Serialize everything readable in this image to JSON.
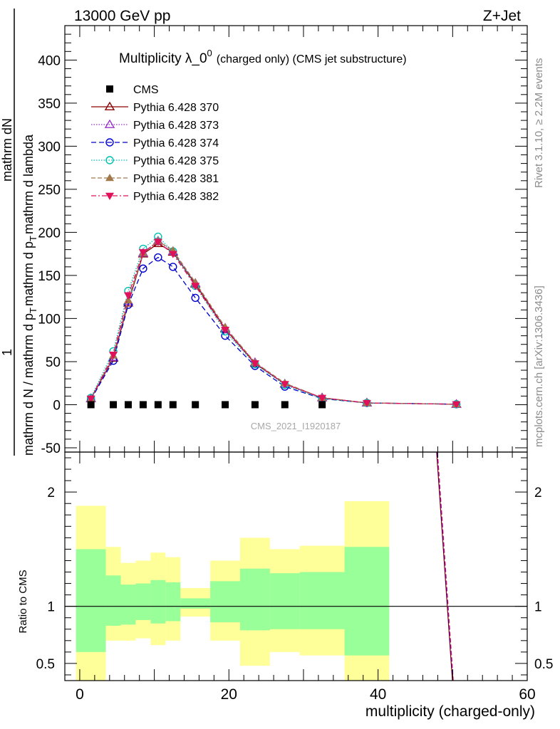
{
  "header": {
    "energy_label": "13000 GeV pp",
    "process_label": "Z+Jet"
  },
  "side_labels": {
    "rivet": "Rivet 3.1.10, ≥ 2.2M events",
    "mcplots": "mcplots.cern.ch [arXiv:1306.3436]"
  },
  "chart_data": [
    {
      "type": "line",
      "title_main": "Multiplicity λ_0",
      "title_sup": "0",
      "title_suffix": "(charged only) (CMS jet substructure)",
      "ylabel_frac_num": "mathrm dN",
      "ylabel_lines": [
        "mathrm d N / mathrm d p",
        "mathrm d p",
        "mathrm d lambda"
      ],
      "ylabel_one": "1",
      "ylabel_sub": "T",
      "watermark": "CMS_2021_I1920187",
      "xlim": [
        -2,
        60
      ],
      "ylim": [
        -55,
        440
      ],
      "y_ticks": [
        -50,
        0,
        50,
        100,
        150,
        200,
        250,
        300,
        350,
        400
      ],
      "x_ticks": [
        0,
        20,
        40,
        60
      ],
      "legend_position": "top-left",
      "cms": {
        "name": "CMS",
        "color": "#000000",
        "x": [
          1.5,
          4.5,
          6.5,
          8.5,
          10.5,
          12.5,
          15.5,
          19.5,
          23.5,
          27.5,
          32.5
        ],
        "y": [
          0,
          0,
          0,
          0,
          0,
          0,
          0,
          0,
          0,
          0,
          0
        ]
      },
      "x": [
        1.5,
        4.5,
        6.5,
        8.5,
        10.5,
        12.5,
        15.5,
        19.5,
        23.5,
        27.5,
        32.5,
        38.5,
        50.5
      ],
      "series": [
        {
          "name": "Pythia 6.428 370",
          "color": "#8b0000",
          "dash": "",
          "marker": "triangle-up-open",
          "values": [
            7,
            54,
            118,
            175,
            187,
            177,
            140,
            88,
            48,
            24,
            8,
            2,
            0.5
          ]
        },
        {
          "name": "Pythia 6.428 373",
          "color": "#9932cc",
          "dash": "1.5 2",
          "marker": "triangle-up-open",
          "values": [
            7,
            55,
            120,
            176,
            190,
            178,
            141,
            89,
            49,
            24,
            8,
            2,
            0.5
          ]
        },
        {
          "name": "Pythia 6.428 374",
          "color": "#0000cd",
          "dash": "7 4",
          "marker": "circle-open",
          "values": [
            6,
            51,
            116,
            158,
            171,
            160,
            124,
            80,
            45,
            21,
            7,
            2,
            0.5
          ]
        },
        {
          "name": "Pythia 6.428 375",
          "color": "#00c0b0",
          "dash": "1.5 2",
          "marker": "circle-open",
          "values": [
            8,
            62,
            132,
            181,
            195,
            178,
            138,
            85,
            47,
            23,
            7,
            2,
            0.5
          ]
        },
        {
          "name": "Pythia 6.428 381",
          "color": "#a0784a",
          "dash": "6 3",
          "marker": "triangle-up-filled",
          "values": [
            7,
            57,
            121,
            176,
            190,
            179,
            142,
            90,
            49,
            25,
            8,
            2,
            0.5
          ]
        },
        {
          "name": "Pythia 6.428 382",
          "color": "#e0105a",
          "dash": "7 3 2 3",
          "marker": "triangle-down-filled",
          "values": [
            7,
            58,
            127,
            177,
            189,
            175,
            138,
            87,
            48,
            24,
            8,
            2,
            0.5
          ]
        }
      ]
    },
    {
      "type": "area",
      "ylabel": "Ratio to CMS",
      "xlabel": "multiplicity (charged-only)",
      "xlim": [
        -2,
        60
      ],
      "ylim": [
        0.35,
        2.35
      ],
      "y_ticks": [
        0.5,
        1,
        2
      ],
      "y_tick_labels": [
        "0.5",
        "1",
        "2"
      ],
      "x_ticks": [
        0,
        20,
        40,
        60
      ],
      "x_tick_labels": [
        "0",
        "20",
        "40",
        "60"
      ],
      "reference": 1,
      "bands": [
        {
          "x0": -0.5,
          "x1": 3.5,
          "inner": [
            0.6,
            1.5
          ],
          "outer": [
            0.35,
            1.88
          ]
        },
        {
          "x0": 3.5,
          "x1": 5.5,
          "inner": [
            0.83,
            1.27
          ],
          "outer": [
            0.7,
            1.52
          ]
        },
        {
          "x0": 5.5,
          "x1": 7.5,
          "inner": [
            0.84,
            1.19
          ],
          "outer": [
            0.7,
            1.38
          ]
        },
        {
          "x0": 7.5,
          "x1": 9.5,
          "inner": [
            0.88,
            1.2
          ],
          "outer": [
            0.72,
            1.4
          ]
        },
        {
          "x0": 9.5,
          "x1": 11.5,
          "inner": [
            0.85,
            1.23
          ],
          "outer": [
            0.66,
            1.47
          ]
        },
        {
          "x0": 11.5,
          "x1": 13.5,
          "inner": [
            0.87,
            1.21
          ],
          "outer": [
            0.7,
            1.43
          ]
        },
        {
          "x0": 13.5,
          "x1": 17.5,
          "inner": [
            0.98,
            1.07
          ],
          "outer": [
            0.91,
            1.16
          ]
        },
        {
          "x0": 17.5,
          "x1": 21.5,
          "inner": [
            0.86,
            1.22
          ],
          "outer": [
            0.7,
            1.4
          ]
        },
        {
          "x0": 21.5,
          "x1": 25.5,
          "inner": [
            0.79,
            1.33
          ],
          "outer": [
            0.48,
            1.6
          ]
        },
        {
          "x0": 25.5,
          "x1": 29.5,
          "inner": [
            0.8,
            1.29
          ],
          "outer": [
            0.6,
            1.5
          ]
        },
        {
          "x0": 29.5,
          "x1": 35.5,
          "inner": [
            0.8,
            1.3
          ],
          "outer": [
            0.57,
            1.53
          ]
        },
        {
          "x0": 35.5,
          "x1": 41.5,
          "inner": [
            0.57,
            1.52
          ],
          "outer": [
            0.35,
            1.92
          ]
        }
      ],
      "inner_color": "#99ff99",
      "outer_color": "#ffff99",
      "steep_line": {
        "x": [
          47.8,
          50.0
        ],
        "y": [
          2.4,
          0.32
        ],
        "colors": [
          "#8b0000",
          "#0000cd",
          "#e0105a"
        ]
      }
    }
  ]
}
